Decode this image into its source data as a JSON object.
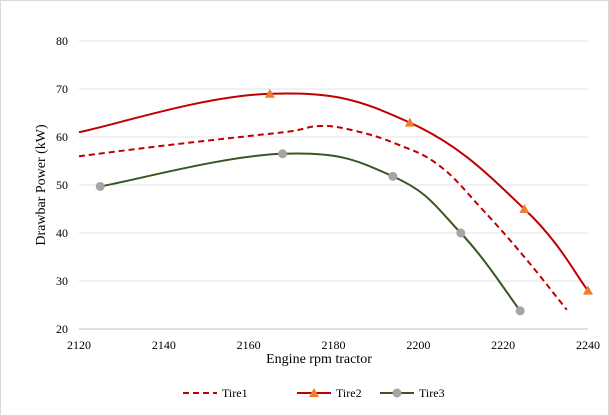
{
  "chart_data": {
    "type": "line",
    "xlabel": "Engine rpm tractor",
    "ylabel": "Drawbar Power (kW)",
    "xlim": [
      2120,
      2240
    ],
    "ylim": [
      20,
      80
    ],
    "x_ticks": [
      "2120",
      "2140",
      "2160",
      "2180",
      "2200",
      "2220",
      "2240"
    ],
    "y_ticks": [
      "20",
      "30",
      "40",
      "50",
      "60",
      "70",
      "80"
    ],
    "grid": "horizontal",
    "legend": "bottom",
    "series": [
      {
        "name": "Tire1",
        "color": "#c00000",
        "style": "dashed",
        "marker": "none",
        "points": [
          [
            2120,
            56
          ],
          [
            2140,
            58.2
          ],
          [
            2160,
            60.2
          ],
          [
            2170,
            61.2
          ],
          [
            2177,
            62.3
          ],
          [
            2185,
            61.3
          ],
          [
            2195,
            58.5
          ],
          [
            2205,
            54
          ],
          [
            2215,
            45
          ],
          [
            2225,
            35
          ],
          [
            2235,
            24
          ]
        ]
      },
      {
        "name": "Tire2",
        "color": "#c00000",
        "marker_color": "#ed7d31",
        "style": "solid",
        "marker": "triangle",
        "points": [
          [
            2120,
            61
          ],
          [
            2165,
            69
          ],
          [
            2198,
            63
          ],
          [
            2225,
            45
          ],
          [
            2240,
            28
          ]
        ],
        "marked": [
          [
            2165,
            69
          ],
          [
            2198,
            63
          ],
          [
            2225,
            45
          ],
          [
            2240,
            28
          ]
        ]
      },
      {
        "name": "Tire3",
        "color": "#385723",
        "marker_color": "#a5a5a5",
        "style": "solid",
        "marker": "circle",
        "points": [
          [
            2125,
            49.7
          ],
          [
            2168,
            56.5
          ],
          [
            2194,
            51.8
          ],
          [
            2210,
            40
          ],
          [
            2224,
            23.8
          ]
        ],
        "marked": [
          [
            2125,
            49.7
          ],
          [
            2168,
            56.5
          ],
          [
            2194,
            51.8
          ],
          [
            2210,
            40
          ],
          [
            2224,
            23.8
          ]
        ]
      }
    ]
  }
}
